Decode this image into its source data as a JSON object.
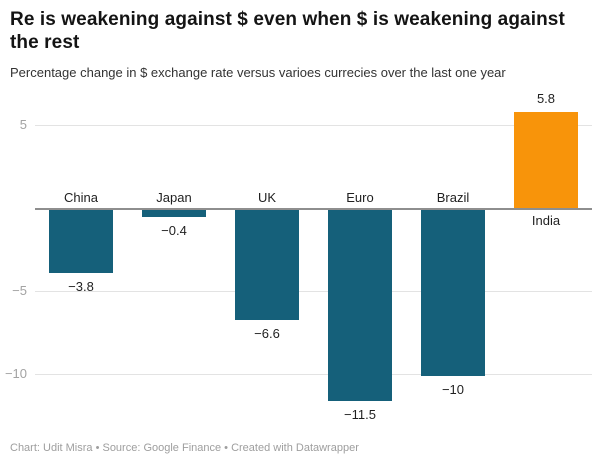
{
  "header": {
    "title": "Re is weakening against $ even when $ is weakening against the rest",
    "subtitle": "Percentage change in $ exchange rate versus varioes currecies over the last one year"
  },
  "chart_data": {
    "type": "bar",
    "title": "Re is weakening against $ even when $ is weakening against the rest",
    "subtitle": "Percentage change in $ exchange rate versus varioes currecies over the last one year",
    "categories": [
      "China",
      "Japan",
      "UK",
      "Euro",
      "Brazil",
      "India"
    ],
    "values": [
      -3.8,
      -0.4,
      -6.6,
      -11.5,
      -10,
      5.8
    ],
    "value_labels": [
      "−3.8",
      "−0.4",
      "−6.6",
      "−11.5",
      "−10",
      "5.8"
    ],
    "bar_colors": [
      "#15607a",
      "#15607a",
      "#15607a",
      "#15607a",
      "#15607a",
      "#f8940a"
    ],
    "xlabel": "",
    "ylabel": "",
    "ylim": [
      -13,
      7.5
    ],
    "yticks": [
      {
        "value": 5,
        "label": "5"
      },
      {
        "value": -5,
        "label": "−5"
      },
      {
        "value": -10,
        "label": "−10"
      }
    ],
    "baseline_value": 0,
    "grid": true,
    "legend": false,
    "colors": {
      "negative_bar": "#15607a",
      "positive_bar": "#f8940a",
      "gridline": "#e3e3e3",
      "baseline": "#8e8e8e",
      "tick_text": "#a3a3a3",
      "label_text": "#1f1f1f"
    }
  },
  "footer": {
    "credit": "Chart: Udit Misra • Source: Google Finance • Created with Datawrapper"
  }
}
